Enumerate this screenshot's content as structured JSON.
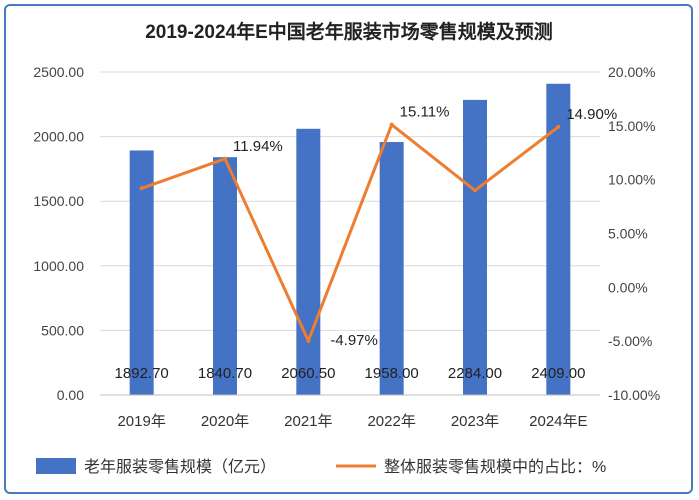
{
  "chart_data": {
    "type": "bar",
    "title": "2019-2024年E中国老年服装市场零售规模及预测",
    "categories": [
      "2019年",
      "2020年",
      "2021年",
      "2022年",
      "2023年",
      "2024年E"
    ],
    "y_left": {
      "min": 0,
      "max": 2500,
      "step": 500,
      "tick_labels": [
        "0.00",
        "500.00",
        "1000.00",
        "1500.00",
        "2000.00",
        "2500.00"
      ]
    },
    "y_right": {
      "min": -10,
      "max": 20,
      "step": 5,
      "tick_labels": [
        "-10.00%",
        "-5.00%",
        "0.00%",
        "5.00%",
        "10.00%",
        "15.00%",
        "20.00%"
      ]
    },
    "series": [
      {
        "name": "老年服装零售规模（亿元）",
        "type": "bar",
        "axis": "left",
        "color": "#4472c4",
        "values": [
          1892.7,
          1840.7,
          2060.5,
          1958.0,
          2284.0,
          2409.0
        ],
        "labels": [
          "1892.70",
          "1840.70",
          "2060.50",
          "1958.00",
          "2284.00",
          "2409.00"
        ]
      },
      {
        "name": "整体服装零售规模中的占比：%",
        "type": "line",
        "axis": "right",
        "color": "#ed7d31",
        "values": [
          9.2,
          11.94,
          -4.97,
          15.11,
          9.0,
          14.9
        ],
        "labels": [
          "",
          "11.94%",
          "-4.97%",
          "15.11%",
          "",
          "14.90%"
        ]
      }
    ],
    "grid": true,
    "legend_position": "bottom"
  }
}
